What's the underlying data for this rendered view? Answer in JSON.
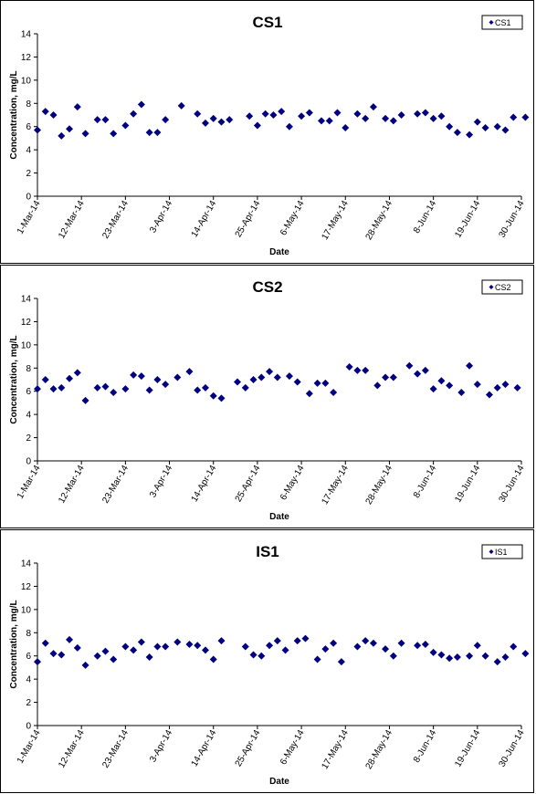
{
  "chart_data": [
    {
      "type": "scatter",
      "title": "CS1",
      "xlabel": "Date",
      "ylabel": "Concentration, mg/L",
      "ylim": [
        0,
        14
      ],
      "yticks": [
        "0",
        "2",
        "4",
        "6",
        "8",
        "10",
        "12",
        "14"
      ],
      "xlim": [
        "2014-03-01",
        "2014-06-30"
      ],
      "xtick_labels": [
        "1-Mar-14",
        "12-Mar-14",
        "23-Mar-14",
        "3-Apr-14",
        "14-Apr-14",
        "25-Apr-14",
        "6-May-14",
        "17-May-14",
        "28-May-14",
        "8-Jun-14",
        "19-Jun-14",
        "30-Jun-14"
      ],
      "grid": false,
      "legend_position": "top-right",
      "marker_color": "#000080",
      "series": [
        {
          "name": "CS1",
          "points": [
            [
              "2014-03-01",
              5.7
            ],
            [
              "2014-03-03",
              7.3
            ],
            [
              "2014-03-05",
              7.0
            ],
            [
              "2014-03-07",
              5.2
            ],
            [
              "2014-03-09",
              5.8
            ],
            [
              "2014-03-11",
              7.7
            ],
            [
              "2014-03-13",
              5.4
            ],
            [
              "2014-03-16",
              6.6
            ],
            [
              "2014-03-18",
              6.6
            ],
            [
              "2014-03-20",
              5.4
            ],
            [
              "2014-03-23",
              6.1
            ],
            [
              "2014-03-25",
              7.1
            ],
            [
              "2014-03-27",
              7.9
            ],
            [
              "2014-03-29",
              5.5
            ],
            [
              "2014-03-31",
              5.5
            ],
            [
              "2014-04-02",
              6.6
            ],
            [
              "2014-04-06",
              7.8
            ],
            [
              "2014-04-10",
              7.1
            ],
            [
              "2014-04-12",
              6.3
            ],
            [
              "2014-04-14",
              6.7
            ],
            [
              "2014-04-16",
              6.4
            ],
            [
              "2014-04-18",
              6.6
            ],
            [
              "2014-04-23",
              6.9
            ],
            [
              "2014-04-25",
              6.1
            ],
            [
              "2014-04-27",
              7.1
            ],
            [
              "2014-04-29",
              7.0
            ],
            [
              "2014-05-01",
              7.3
            ],
            [
              "2014-05-03",
              6.0
            ],
            [
              "2014-05-06",
              6.9
            ],
            [
              "2014-05-08",
              7.2
            ],
            [
              "2014-05-11",
              6.5
            ],
            [
              "2014-05-13",
              6.5
            ],
            [
              "2014-05-15",
              7.2
            ],
            [
              "2014-05-17",
              5.9
            ],
            [
              "2014-05-20",
              7.1
            ],
            [
              "2014-05-22",
              6.7
            ],
            [
              "2014-05-24",
              7.7
            ],
            [
              "2014-05-27",
              6.7
            ],
            [
              "2014-05-29",
              6.5
            ],
            [
              "2014-05-31",
              7.0
            ],
            [
              "2014-06-04",
              7.1
            ],
            [
              "2014-06-06",
              7.2
            ],
            [
              "2014-06-08",
              6.7
            ],
            [
              "2014-06-10",
              6.9
            ],
            [
              "2014-06-12",
              6.0
            ],
            [
              "2014-06-14",
              5.5
            ],
            [
              "2014-06-17",
              5.3
            ],
            [
              "2014-06-19",
              6.4
            ],
            [
              "2014-06-21",
              5.9
            ],
            [
              "2014-06-24",
              6.0
            ],
            [
              "2014-06-26",
              5.7
            ],
            [
              "2014-06-28",
              6.8
            ],
            [
              "2014-07-01",
              6.8
            ]
          ]
        }
      ]
    },
    {
      "type": "scatter",
      "title": "CS2",
      "xlabel": "Date",
      "ylabel": "Concentration, mg/L",
      "ylim": [
        0,
        14
      ],
      "yticks": [
        "0",
        "2",
        "4",
        "6",
        "8",
        "10",
        "12",
        "14"
      ],
      "xlim": [
        "2014-03-01",
        "2014-06-30"
      ],
      "xtick_labels": [
        "1-Mar-14",
        "12-Mar-14",
        "23-Mar-14",
        "3-Apr-14",
        "14-Apr-14",
        "25-Apr-14",
        "6-May-14",
        "17-May-14",
        "28-May-14",
        "8-Jun-14",
        "19-Jun-14",
        "30-Jun-14"
      ],
      "grid": false,
      "legend_position": "top-right",
      "marker_color": "#000080",
      "series": [
        {
          "name": "CS2",
          "points": [
            [
              "2014-03-01",
              6.2
            ],
            [
              "2014-03-03",
              7.0
            ],
            [
              "2014-03-05",
              6.2
            ],
            [
              "2014-03-07",
              6.3
            ],
            [
              "2014-03-09",
              7.1
            ],
            [
              "2014-03-11",
              7.6
            ],
            [
              "2014-03-13",
              5.2
            ],
            [
              "2014-03-16",
              6.3
            ],
            [
              "2014-03-18",
              6.4
            ],
            [
              "2014-03-20",
              5.9
            ],
            [
              "2014-03-23",
              6.2
            ],
            [
              "2014-03-25",
              7.4
            ],
            [
              "2014-03-27",
              7.3
            ],
            [
              "2014-03-29",
              6.1
            ],
            [
              "2014-03-31",
              7.0
            ],
            [
              "2014-04-02",
              6.6
            ],
            [
              "2014-04-05",
              7.2
            ],
            [
              "2014-04-08",
              7.7
            ],
            [
              "2014-04-10",
              6.1
            ],
            [
              "2014-04-12",
              6.3
            ],
            [
              "2014-04-14",
              5.6
            ],
            [
              "2014-04-16",
              5.4
            ],
            [
              "2014-04-20",
              6.8
            ],
            [
              "2014-04-22",
              6.3
            ],
            [
              "2014-04-24",
              7.0
            ],
            [
              "2014-04-26",
              7.2
            ],
            [
              "2014-04-28",
              7.7
            ],
            [
              "2014-04-30",
              7.2
            ],
            [
              "2014-05-03",
              7.3
            ],
            [
              "2014-05-05",
              6.8
            ],
            [
              "2014-05-08",
              5.8
            ],
            [
              "2014-05-10",
              6.7
            ],
            [
              "2014-05-12",
              6.7
            ],
            [
              "2014-05-14",
              5.9
            ],
            [
              "2014-05-18",
              8.1
            ],
            [
              "2014-05-20",
              7.8
            ],
            [
              "2014-05-22",
              7.8
            ],
            [
              "2014-05-25",
              6.5
            ],
            [
              "2014-05-27",
              7.2
            ],
            [
              "2014-05-29",
              7.2
            ],
            [
              "2014-06-02",
              8.2
            ],
            [
              "2014-06-04",
              7.5
            ],
            [
              "2014-06-06",
              7.8
            ],
            [
              "2014-06-08",
              6.2
            ],
            [
              "2014-06-10",
              6.9
            ],
            [
              "2014-06-12",
              6.5
            ],
            [
              "2014-06-15",
              5.9
            ],
            [
              "2014-06-17",
              8.2
            ],
            [
              "2014-06-19",
              6.6
            ],
            [
              "2014-06-22",
              5.7
            ],
            [
              "2014-06-24",
              6.3
            ],
            [
              "2014-06-26",
              6.6
            ],
            [
              "2014-06-29",
              6.3
            ]
          ]
        }
      ]
    },
    {
      "type": "scatter",
      "title": "IS1",
      "xlabel": "Date",
      "ylabel": "Concentration, mg/L",
      "ylim": [
        0,
        14
      ],
      "yticks": [
        "0",
        "2",
        "4",
        "6",
        "8",
        "10",
        "12",
        "14"
      ],
      "xlim": [
        "2014-03-01",
        "2014-06-30"
      ],
      "xtick_labels": [
        "1-Mar-14",
        "12-Mar-14",
        "23-Mar-14",
        "3-Apr-14",
        "14-Apr-14",
        "25-Apr-14",
        "6-May-14",
        "17-May-14",
        "28-May-14",
        "8-Jun-14",
        "19-Jun-14",
        "30-Jun-14"
      ],
      "grid": false,
      "legend_position": "top-right",
      "marker_color": "#000080",
      "series": [
        {
          "name": "IS1",
          "points": [
            [
              "2014-03-01",
              5.5
            ],
            [
              "2014-03-03",
              7.1
            ],
            [
              "2014-03-05",
              6.2
            ],
            [
              "2014-03-07",
              6.1
            ],
            [
              "2014-03-09",
              7.4
            ],
            [
              "2014-03-11",
              6.7
            ],
            [
              "2014-03-13",
              5.2
            ],
            [
              "2014-03-16",
              6.0
            ],
            [
              "2014-03-18",
              6.4
            ],
            [
              "2014-03-20",
              5.7
            ],
            [
              "2014-03-23",
              6.8
            ],
            [
              "2014-03-25",
              6.5
            ],
            [
              "2014-03-27",
              7.2
            ],
            [
              "2014-03-29",
              5.9
            ],
            [
              "2014-03-31",
              6.8
            ],
            [
              "2014-04-02",
              6.8
            ],
            [
              "2014-04-05",
              7.2
            ],
            [
              "2014-04-08",
              7.0
            ],
            [
              "2014-04-10",
              6.9
            ],
            [
              "2014-04-12",
              6.5
            ],
            [
              "2014-04-14",
              5.7
            ],
            [
              "2014-04-16",
              7.3
            ],
            [
              "2014-04-22",
              6.8
            ],
            [
              "2014-04-24",
              6.1
            ],
            [
              "2014-04-26",
              6.0
            ],
            [
              "2014-04-28",
              6.9
            ],
            [
              "2014-04-30",
              7.3
            ],
            [
              "2014-05-02",
              6.5
            ],
            [
              "2014-05-05",
              7.3
            ],
            [
              "2014-05-07",
              7.5
            ],
            [
              "2014-05-10",
              5.7
            ],
            [
              "2014-05-12",
              6.6
            ],
            [
              "2014-05-14",
              7.1
            ],
            [
              "2014-05-16",
              5.5
            ],
            [
              "2014-05-20",
              6.8
            ],
            [
              "2014-05-22",
              7.3
            ],
            [
              "2014-05-24",
              7.1
            ],
            [
              "2014-05-27",
              6.6
            ],
            [
              "2014-05-29",
              6.0
            ],
            [
              "2014-05-31",
              7.1
            ],
            [
              "2014-06-04",
              6.9
            ],
            [
              "2014-06-06",
              7.0
            ],
            [
              "2014-06-08",
              6.3
            ],
            [
              "2014-06-10",
              6.1
            ],
            [
              "2014-06-12",
              5.8
            ],
            [
              "2014-06-14",
              5.9
            ],
            [
              "2014-06-17",
              6.0
            ],
            [
              "2014-06-19",
              6.9
            ],
            [
              "2014-06-21",
              6.0
            ],
            [
              "2014-06-24",
              5.5
            ],
            [
              "2014-06-26",
              5.9
            ],
            [
              "2014-06-28",
              6.8
            ],
            [
              "2014-07-01",
              6.2
            ]
          ]
        }
      ]
    }
  ]
}
